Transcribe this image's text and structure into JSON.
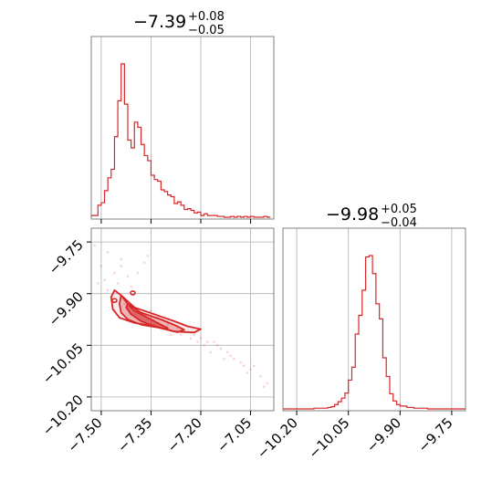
{
  "chart_data": [
    {
      "type": "histogram",
      "panel": "marginal-param-1",
      "title": {
        "median": "−7.39",
        "plus": "+0.08",
        "minus": "−0.05"
      },
      "x_range": [
        -7.53,
        -6.98
      ],
      "xticks": [
        -7.5,
        -7.35,
        -7.2,
        -7.05
      ],
      "color": "#d62728",
      "bins": [
        -7.53,
        -7.52,
        -7.51,
        -7.5,
        -7.49,
        -7.48,
        -7.47,
        -7.46,
        -7.45,
        -7.44,
        -7.43,
        -7.42,
        -7.41,
        -7.4,
        -7.39,
        -7.38,
        -7.37,
        -7.36,
        -7.35,
        -7.34,
        -7.33,
        -7.32,
        -7.31,
        -7.3,
        -7.29,
        -7.28,
        -7.27,
        -7.26,
        -7.25,
        -7.24,
        -7.23,
        -7.22,
        -7.21,
        -7.2,
        -7.19,
        -7.18,
        -7.17,
        -7.16,
        -7.15,
        -7.14,
        -7.13,
        -7.12,
        -7.11,
        -7.1,
        -7.09,
        -7.08,
        -7.07,
        -7.06,
        -7.05,
        -7.04,
        -7.03,
        -7.02,
        -7.01,
        -7.0,
        -6.99
      ],
      "counts": [
        2,
        2,
        14,
        17,
        31,
        46,
        56,
        94,
        136,
        179,
        132,
        90,
        81,
        111,
        105,
        85,
        72,
        66,
        49,
        44,
        42,
        32,
        30,
        26,
        24,
        16,
        18,
        14,
        9,
        10,
        8,
        5,
        6,
        2,
        4,
        2,
        2,
        2,
        1,
        1,
        0,
        0,
        1,
        0,
        1,
        0,
        1,
        0,
        1,
        0,
        0,
        0,
        1,
        0
      ]
    },
    {
      "type": "contour",
      "panel": "joint",
      "x_range": [
        -7.53,
        -6.98
      ],
      "y_range": [
        -10.24,
        -9.71
      ],
      "xticks": [
        -7.5,
        -7.35,
        -7.2,
        -7.05
      ],
      "yticks": [
        -9.75,
        -9.9,
        -10.05,
        -10.2
      ],
      "color": "#d62728",
      "contours": [
        {
          "level": "1-sigma",
          "points": [
            [
              -7.42,
              -9.93
            ],
            [
              -7.4,
              -9.95
            ],
            [
              -7.37,
              -9.965
            ],
            [
              -7.33,
              -9.985
            ],
            [
              -7.3,
              -10.0
            ],
            [
              -7.3,
              -10.005
            ],
            [
              -7.34,
              -9.995
            ],
            [
              -7.38,
              -9.98
            ],
            [
              -7.41,
              -9.96
            ],
            [
              -7.425,
              -9.94
            ]
          ]
        },
        {
          "level": "2-sigma",
          "points": [
            [
              -7.44,
              -9.905
            ],
            [
              -7.42,
              -9.93
            ],
            [
              -7.38,
              -9.955
            ],
            [
              -7.32,
              -9.975
            ],
            [
              -7.27,
              -9.995
            ],
            [
              -7.25,
              -10.005
            ],
            [
              -7.27,
              -10.012
            ],
            [
              -7.32,
              -10.0
            ],
            [
              -7.38,
              -9.99
            ],
            [
              -7.42,
              -9.975
            ],
            [
              -7.44,
              -9.955
            ],
            [
              -7.445,
              -9.93
            ]
          ]
        },
        {
          "level": "3-sigma",
          "points": [
            [
              -7.46,
              -9.89
            ],
            [
              -7.44,
              -9.905
            ],
            [
              -7.4,
              -9.94
            ],
            [
              -7.34,
              -9.96
            ],
            [
              -7.28,
              -9.98
            ],
            [
              -7.24,
              -9.995
            ],
            [
              -7.2,
              -10.003
            ],
            [
              -7.22,
              -10.013
            ],
            [
              -7.28,
              -10.01
            ],
            [
              -7.34,
              -9.995
            ],
            [
              -7.4,
              -9.985
            ],
            [
              -7.445,
              -9.97
            ],
            [
              -7.465,
              -9.945
            ],
            [
              -7.47,
              -9.91
            ]
          ]
        }
      ],
      "peaks": [
        [
          -7.405,
          -9.898
        ],
        [
          -7.46,
          -9.92
        ]
      ],
      "samples": [
        [
          -7.52,
          -9.76
        ],
        [
          -7.48,
          -9.78
        ],
        [
          -7.44,
          -9.8
        ],
        [
          -7.5,
          -9.82
        ],
        [
          -7.46,
          -9.84
        ],
        [
          -7.49,
          -9.86
        ],
        [
          -7.45,
          -9.87
        ],
        [
          -7.42,
          -9.85
        ],
        [
          -7.48,
          -9.89
        ],
        [
          -7.47,
          -9.91
        ],
        [
          -7.43,
          -9.93
        ],
        [
          -7.4,
          -9.94
        ],
        [
          -7.38,
          -9.96
        ],
        [
          -7.35,
          -9.95
        ],
        [
          -7.33,
          -9.97
        ],
        [
          -7.3,
          -9.99
        ],
        [
          -7.27,
          -10.0
        ],
        [
          -7.25,
          -10.01
        ],
        [
          -7.22,
          -10.02
        ],
        [
          -7.2,
          -10.03
        ],
        [
          -7.18,
          -10.04
        ],
        [
          -7.15,
          -10.05
        ],
        [
          -7.12,
          -10.07
        ],
        [
          -7.1,
          -10.09
        ],
        [
          -7.07,
          -10.11
        ],
        [
          -7.05,
          -10.12
        ],
        [
          -7.02,
          -10.14
        ],
        [
          -7.0,
          -10.16
        ],
        [
          -7.19,
          -10.05
        ],
        [
          -7.23,
          -10.03
        ],
        [
          -7.16,
          -10.04
        ],
        [
          -7.14,
          -10.06
        ],
        [
          -7.21,
          -10.04
        ],
        [
          -7.26,
          -10.02
        ],
        [
          -7.44,
          -9.82
        ],
        [
          -7.51,
          -9.87
        ],
        [
          -7.41,
          -9.88
        ],
        [
          -7.39,
          -9.84
        ],
        [
          -7.37,
          -9.81
        ],
        [
          -7.36,
          -9.79
        ],
        [
          -7.46,
          -9.95
        ],
        [
          -7.34,
          -9.99
        ],
        [
          -7.29,
          -10.02
        ],
        [
          -7.17,
          -10.07
        ],
        [
          -7.11,
          -10.08
        ],
        [
          -7.08,
          -10.1
        ],
        [
          -7.04,
          -10.11
        ],
        [
          -7.01,
          -10.17
        ],
        [
          -7.06,
          -10.13
        ],
        [
          -7.13,
          -10.09
        ]
      ]
    },
    {
      "type": "histogram",
      "panel": "marginal-param-2",
      "title": {
        "median": "−9.98",
        "plus": "+0.05",
        "minus": "−0.04"
      },
      "x_range": [
        -10.24,
        -9.71
      ],
      "xticks": [
        -10.2,
        -10.05,
        -9.9,
        -9.75
      ],
      "color": "#d62728",
      "bins": [
        -10.24,
        -10.23,
        -10.22,
        -10.21,
        -10.2,
        -10.19,
        -10.18,
        -10.17,
        -10.16,
        -10.15,
        -10.14,
        -10.13,
        -10.12,
        -10.11,
        -10.1,
        -10.09,
        -10.08,
        -10.07,
        -10.06,
        -10.05,
        -10.04,
        -10.03,
        -10.02,
        -10.01,
        -10.0,
        -9.99,
        -9.98,
        -9.97,
        -9.96,
        -9.95,
        -9.94,
        -9.93,
        -9.92,
        -9.91,
        -9.9,
        -9.89,
        -9.88,
        -9.87,
        -9.86,
        -9.85,
        -9.84,
        -9.83,
        -9.82,
        -9.81,
        -9.8,
        -9.79,
        -9.78,
        -9.77,
        -9.76,
        -9.75,
        -9.74,
        -9.73,
        -9.72,
        -9.71
      ],
      "counts": [
        0,
        0,
        0,
        0,
        0,
        0,
        0,
        0,
        0,
        1,
        1,
        1,
        1,
        2,
        3,
        6,
        10,
        15,
        22,
        40,
        58,
        104,
        130,
        165,
        211,
        213,
        188,
        146,
        125,
        71,
        45,
        21,
        11,
        6,
        4,
        4,
        2,
        2,
        1,
        1,
        1,
        1,
        0,
        0,
        0,
        0,
        0,
        0,
        0,
        0,
        0,
        0,
        0
      ]
    }
  ]
}
